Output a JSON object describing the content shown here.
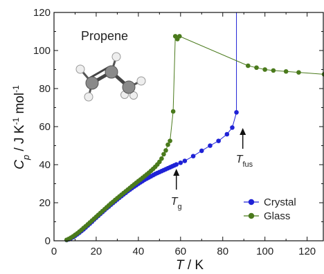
{
  "chart_data": {
    "type": "scatter",
    "xlabel": {
      "var": "T",
      "unit": " / K"
    },
    "ylabel": {
      "var": "C",
      "sub": "p",
      "unit_pre": " / J K",
      "sup1": "-1",
      "unit_mid": " mol",
      "sup2": "-1"
    },
    "xlim": [
      0,
      128
    ],
    "ylim": [
      0,
      120
    ],
    "xticks": [
      0,
      20,
      40,
      60,
      80,
      100,
      120
    ],
    "yticks": [
      0,
      20,
      40,
      60,
      80,
      100,
      120
    ],
    "grid": false,
    "legend_position": "bottom-right",
    "series": [
      {
        "name": "Crystal",
        "color": "#1f22d6",
        "x": [
          6,
          7,
          8,
          9,
          10,
          11,
          12,
          13,
          14,
          15,
          16,
          17,
          18,
          19,
          20,
          21,
          22,
          23,
          24,
          25,
          26,
          27,
          28,
          29,
          30,
          31,
          32,
          33,
          34,
          35,
          36,
          37,
          38,
          39,
          40,
          41,
          42,
          43,
          44,
          45,
          46,
          47,
          48,
          49,
          50,
          51,
          52,
          53,
          54,
          55,
          56,
          57,
          58,
          60,
          62,
          66,
          70,
          74,
          78,
          82,
          84.5,
          86.5
        ],
        "y": [
          0.4,
          0.8,
          1.3,
          1.9,
          2.6,
          3.4,
          4.2,
          5.1,
          6.0,
          7.0,
          8.0,
          9.0,
          10.0,
          11.1,
          12.1,
          13.1,
          14.1,
          15.1,
          16.1,
          17.1,
          18.0,
          19.0,
          19.9,
          20.8,
          21.7,
          22.6,
          23.5,
          24.4,
          25.2,
          26.1,
          26.9,
          27.7,
          28.5,
          29.2,
          30.0,
          30.7,
          31.4,
          32.1,
          32.7,
          33.3,
          33.9,
          34.5,
          35.1,
          35.6,
          36.1,
          36.6,
          37.1,
          37.6,
          38.1,
          38.6,
          39.1,
          39.6,
          40.1,
          41.0,
          42.0,
          44.5,
          47.3,
          50.0,
          52.5,
          56.0,
          59.5,
          67.5
        ],
        "melting_line_x": 86.5
      },
      {
        "name": "Glass",
        "color": "#4a7a1c",
        "x": [
          6,
          7,
          8,
          9,
          10,
          11,
          12,
          13,
          14,
          15,
          16,
          17,
          18,
          19,
          20,
          21,
          22,
          23,
          24,
          25,
          26,
          27,
          28,
          29,
          30,
          31,
          32,
          33,
          34,
          35,
          36,
          37,
          38,
          39,
          40,
          41,
          42,
          43,
          44,
          45,
          46,
          47,
          48,
          49,
          50,
          51,
          52,
          53,
          54,
          55,
          56.5,
          57.5,
          58.5,
          59.5,
          92,
          96,
          100,
          104,
          110,
          116,
          128
        ],
        "y": [
          0.5,
          1.0,
          1.6,
          2.3,
          3.1,
          3.9,
          4.8,
          5.7,
          6.7,
          7.6,
          8.6,
          9.6,
          10.6,
          11.6,
          12.6,
          13.6,
          14.6,
          15.6,
          16.6,
          17.6,
          18.6,
          19.6,
          20.5,
          21.5,
          22.4,
          23.3,
          24.2,
          25.1,
          26.0,
          26.9,
          27.8,
          28.7,
          29.6,
          30.5,
          31.4,
          32.2,
          33.1,
          34.0,
          34.9,
          35.8,
          36.8,
          37.8,
          38.9,
          40.1,
          41.5,
          43.2,
          45.5,
          47.5,
          50.5,
          52.5,
          68.0,
          107.5,
          106.0,
          107.5,
          92.0,
          91.0,
          90.0,
          89.5,
          89.0,
          88.5,
          87.5
        ]
      }
    ],
    "annotations": {
      "title": "Propene",
      "tg": {
        "var": "T",
        "sub": "g",
        "x": 58,
        "y": 40
      },
      "tfus": {
        "var": "T",
        "sub": "fus",
        "x": 89.5,
        "y": 60
      }
    }
  }
}
